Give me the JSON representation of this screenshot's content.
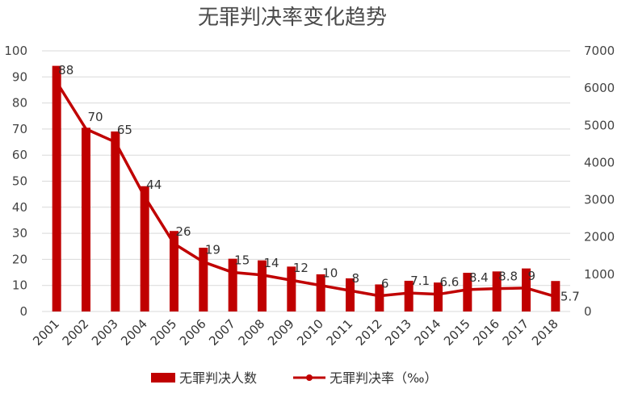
{
  "chart_data": {
    "type": "bar+line",
    "title": "无罪判决率变化趋势",
    "categories": [
      "2001",
      "2002",
      "2003",
      "2004",
      "2005",
      "2006",
      "2007",
      "2008",
      "2009",
      "2010",
      "2011",
      "2012",
      "2013",
      "2014",
      "2015",
      "2016",
      "2017",
      "2018"
    ],
    "series": [
      {
        "name": "无罪判决人数",
        "type": "bar",
        "axis": "right",
        "values": [
          6597,
          4935,
          4835,
          3365,
          2162,
          1713,
          1417,
          1373,
          1206,
          999,
          891,
          727,
          825,
          778,
          1039,
          1076,
          1156,
          819
        ]
      },
      {
        "name": "无罪判决率（‰）",
        "type": "line",
        "axis": "left",
        "values": [
          88,
          70,
          65,
          44,
          26,
          19,
          15,
          14,
          12,
          10,
          8,
          6,
          7.1,
          6.6,
          8.4,
          8.8,
          9,
          5.7
        ],
        "labels": [
          "88",
          "70",
          "65",
          "44",
          "26",
          "19",
          "15",
          "14",
          "12",
          "10",
          "8",
          "6",
          "7.1",
          "6.6",
          "8.4",
          "8.8",
          "9",
          "5.7"
        ]
      }
    ],
    "left_axis": {
      "ylim": [
        0,
        100
      ],
      "ticks": [
        0,
        10,
        20,
        30,
        40,
        50,
        60,
        70,
        80,
        90,
        100
      ]
    },
    "right_axis": {
      "ylim": [
        0,
        7000
      ],
      "ticks": [
        0,
        1000,
        2000,
        3000,
        4000,
        5000,
        6000,
        7000
      ]
    },
    "grid": true,
    "legend_position": "bottom",
    "colors": {
      "bar": "#c00000",
      "line": "#c00000",
      "grid": "#d9d9d9"
    }
  }
}
